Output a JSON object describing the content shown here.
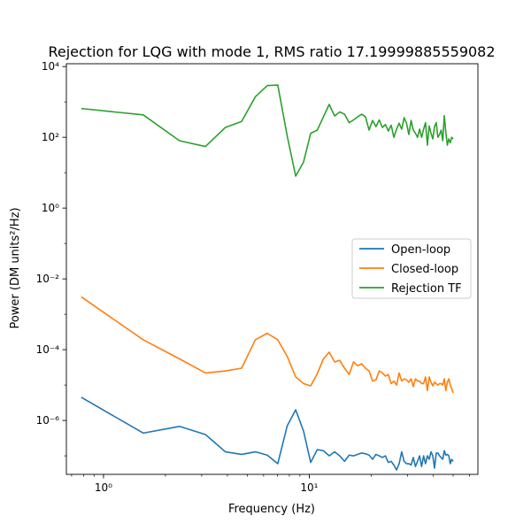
{
  "chart_data": {
    "type": "line",
    "title": "Rejection for LQG with mode 1, RMS ratio 17.19999885559082",
    "xlabel": "Frequency (Hz)",
    "ylabel": "Power (DM units²/Hz)",
    "xscale": "log",
    "yscale": "log",
    "xlim": [
      0.66,
      66
    ],
    "ylim": [
      3e-08,
      12000
    ],
    "x_ticks": [
      {
        "value": 1,
        "label": "10⁰"
      },
      {
        "value": 10,
        "label": "10¹"
      }
    ],
    "y_ticks": [
      {
        "value": 1e-06,
        "label": "10⁻⁶"
      },
      {
        "value": 0.0001,
        "label": "10⁻⁴"
      },
      {
        "value": 0.01,
        "label": "10⁻²"
      },
      {
        "value": 1,
        "label": "10⁰"
      },
      {
        "value": 100,
        "label": "10²"
      },
      {
        "value": 10000,
        "label": "10⁴"
      }
    ],
    "grid": false,
    "legend_position": "center-right",
    "x": [
      0.78,
      1.56,
      2.34,
      3.13,
      3.91,
      4.69,
      5.47,
      6.25,
      7.03,
      7.81,
      8.59,
      9.38,
      10.16,
      10.94,
      11.72,
      12.5,
      13.28,
      14.06,
      14.84,
      15.63,
      16.41,
      17.19,
      17.97,
      18.75,
      19.53,
      20.31,
      21.09,
      21.88,
      22.66,
      23.44,
      24.22,
      25.0,
      25.78,
      26.56,
      27.34,
      28.13,
      28.91,
      29.69,
      30.47,
      31.25,
      32.03,
      32.81,
      33.59,
      34.38,
      35.16,
      35.94,
      36.72,
      37.5,
      38.28,
      39.06,
      39.84,
      40.63,
      41.41,
      42.19,
      42.97,
      43.75,
      44.53,
      45.31,
      46.09,
      46.88,
      47.66,
      48.44,
      49.22,
      50.0
    ],
    "series": [
      {
        "name": "Open-loop",
        "color": "#1f77b4",
        "values": [
          4.5e-06,
          4.4e-07,
          6.8e-07,
          4e-07,
          1.3e-07,
          1.1e-07,
          1.3e-07,
          1.05e-07,
          6e-08,
          7e-07,
          2e-06,
          5e-07,
          6.5e-08,
          1.5e-07,
          1.4e-07,
          1e-07,
          1.3e-07,
          1e-07,
          7e-08,
          1.05e-07,
          1e-07,
          1.1e-07,
          1.2e-07,
          1.15e-07,
          1.05e-07,
          8e-08,
          1.1e-07,
          1e-07,
          9e-08,
          1e-07,
          6.5e-08,
          7e-08,
          5.5e-08,
          4e-08,
          6e-08,
          1.3e-07,
          7e-08,
          6e-08,
          6e-08,
          5.5e-08,
          9e-08,
          5e-08,
          7e-08,
          1e-07,
          5e-08,
          1e-07,
          6e-08,
          1e-07,
          8e-08,
          1.3e-07,
          1e-07,
          4.5e-08,
          1.2e-07,
          1.2e-07,
          1e-07,
          9e-08,
          8e-08,
          1.4e-07,
          1.05e-07,
          1.1e-07,
          1e-07,
          6e-08,
          8e-08,
          7e-08
        ]
      },
      {
        "name": "Closed-loop",
        "color": "#ff7f0e",
        "values": [
          0.0031,
          0.00019,
          5.5e-05,
          2.2e-05,
          2.5e-05,
          3e-05,
          0.00019,
          0.00029,
          0.00019,
          6.5e-05,
          1.7e-05,
          1.1e-05,
          9.5e-06,
          2.1e-05,
          5.5e-05,
          8.5e-05,
          4.5e-05,
          5e-05,
          3e-05,
          2e-05,
          4.5e-05,
          3.5e-05,
          4e-05,
          3e-05,
          2.5e-05,
          1.3e-05,
          1.4e-05,
          2.5e-05,
          2.2e-05,
          1.8e-05,
          2e-05,
          1.1e-05,
          1.3e-05,
          1e-05,
          2.2e-05,
          1.3e-05,
          1.5e-05,
          1.4e-05,
          1.2e-05,
          1.5e-05,
          9e-06,
          1.5e-05,
          1.3e-05,
          1.3e-05,
          1.1e-05,
          1.1e-05,
          1.7e-05,
          7e-06,
          1.7e-05,
          1.2e-05,
          9.5e-06,
          1.2e-05,
          1.1e-05,
          1e-05,
          1.1e-05,
          1.1e-05,
          1e-05,
          1.5e-05,
          7e-06,
          1.2e-05,
          1.5e-05,
          1e-05,
          8e-06,
          6e-06
        ]
      },
      {
        "name": "Rejection TF",
        "color": "#2ca02c",
        "values": [
          650,
          430,
          80,
          55,
          190,
          280,
          1400,
          2900,
          3000,
          110,
          8,
          20,
          130,
          160,
          380,
          850,
          400,
          520,
          450,
          260,
          310,
          380,
          450,
          380,
          160,
          300,
          200,
          310,
          190,
          230,
          150,
          220,
          100,
          170,
          250,
          170,
          360,
          250,
          120,
          300,
          160,
          130,
          100,
          170,
          100,
          170,
          260,
          60,
          210,
          130,
          90,
          200,
          260,
          100,
          120,
          160,
          80,
          410,
          140,
          60,
          90,
          70,
          100,
          90
        ]
      }
    ]
  }
}
